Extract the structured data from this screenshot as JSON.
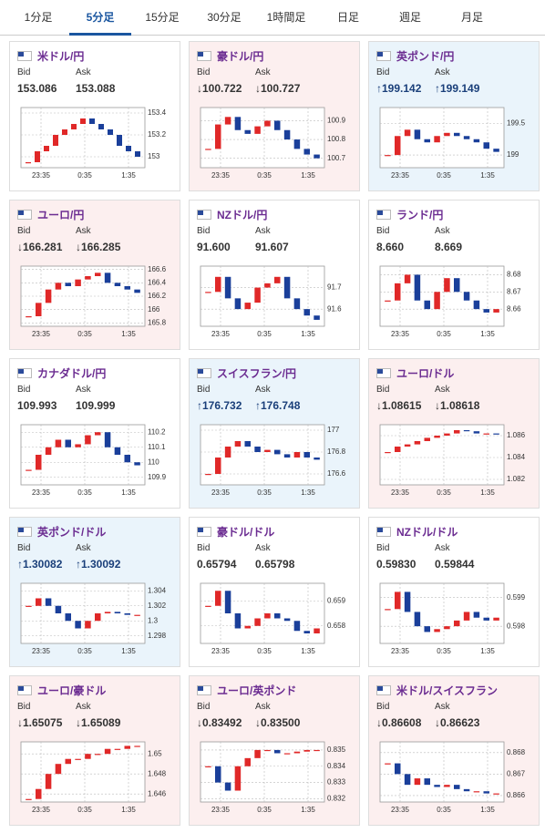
{
  "tabs": [
    "1分足",
    "5分足",
    "15分足",
    "30分足",
    "1時間足",
    "日足",
    "週足",
    "月足"
  ],
  "active_tab": 1,
  "bid_label": "Bid",
  "ask_label": "Ask",
  "time_labels": [
    "23:35",
    "0:35",
    "1:35"
  ],
  "cards": [
    {
      "name": "米ドル/円",
      "bid": "153.086",
      "ask": "153.088",
      "trend": "none",
      "ylim": [
        152.9,
        153.45
      ],
      "yticks": [
        153,
        153.2,
        153.4
      ],
      "closes": [
        152.95,
        153.05,
        153.1,
        153.2,
        153.25,
        153.3,
        153.35,
        153.3,
        153.25,
        153.2,
        153.1,
        153.05,
        153.0
      ]
    },
    {
      "name": "豪ドル/円",
      "bid": "↓100.722",
      "ask": "↓100.727",
      "trend": "down",
      "ylim": [
        100.65,
        100.97
      ],
      "yticks": [
        100.7,
        100.8,
        100.9
      ],
      "closes": [
        100.75,
        100.88,
        100.92,
        100.85,
        100.83,
        100.87,
        100.9,
        100.85,
        100.8,
        100.75,
        100.72,
        100.7
      ]
    },
    {
      "name": "英ポンド/円",
      "bid": "↑199.142",
      "ask": "↑199.149",
      "trend": "up",
      "ylim": [
        198.8,
        199.75
      ],
      "yticks": [
        199,
        199.5
      ],
      "closes": [
        199.0,
        199.3,
        199.4,
        199.25,
        199.2,
        199.3,
        199.35,
        199.3,
        199.25,
        199.2,
        199.1,
        199.05
      ]
    },
    {
      "name": "ユーロ/円",
      "bid": "↓166.281",
      "ask": "↓166.285",
      "trend": "down",
      "ylim": [
        165.75,
        166.65
      ],
      "yticks": [
        165.8,
        166,
        166.2,
        166.4,
        166.6
      ],
      "closes": [
        165.9,
        166.1,
        166.3,
        166.4,
        166.35,
        166.45,
        166.5,
        166.55,
        166.4,
        166.35,
        166.3,
        166.25
      ]
    },
    {
      "name": "NZドル/円",
      "bid": "91.600",
      "ask": "91.607",
      "trend": "none",
      "ylim": [
        91.52,
        91.8
      ],
      "yticks": [
        91.6,
        91.7
      ],
      "closes": [
        91.68,
        91.75,
        91.65,
        91.6,
        91.63,
        91.7,
        91.72,
        91.75,
        91.65,
        91.6,
        91.57,
        91.55
      ]
    },
    {
      "name": "ランド/円",
      "bid": "8.660",
      "ask": "8.669",
      "trend": "none",
      "ylim": [
        8.65,
        8.685
      ],
      "yticks": [
        8.66,
        8.67,
        8.68
      ],
      "closes": [
        8.665,
        8.675,
        8.68,
        8.665,
        8.66,
        8.67,
        8.678,
        8.67,
        8.665,
        8.66,
        8.658,
        8.66
      ]
    },
    {
      "name": "カナダドル/円",
      "bid": "109.993",
      "ask": "109.999",
      "trend": "none",
      "ylim": [
        109.85,
        110.25
      ],
      "yticks": [
        109.9,
        110,
        110.1,
        110.2
      ],
      "closes": [
        109.95,
        110.05,
        110.1,
        110.15,
        110.1,
        110.12,
        110.18,
        110.2,
        110.1,
        110.05,
        110.0,
        109.98
      ]
    },
    {
      "name": "スイスフラン/円",
      "bid": "↑176.732",
      "ask": "↑176.748",
      "trend": "up",
      "ylim": [
        176.5,
        177.05
      ],
      "yticks": [
        176.6,
        176.8,
        177
      ],
      "closes": [
        176.6,
        176.75,
        176.85,
        176.9,
        176.85,
        176.8,
        176.82,
        176.78,
        176.75,
        176.8,
        176.75,
        176.73
      ]
    },
    {
      "name": "ユーロ/ドル",
      "bid": "↓1.08615",
      "ask": "↓1.08618",
      "trend": "down",
      "ylim": [
        1.0815,
        1.087
      ],
      "yticks": [
        1.082,
        1.084,
        1.086
      ],
      "closes": [
        1.0845,
        1.085,
        1.0852,
        1.0855,
        1.0858,
        1.086,
        1.0862,
        1.0865,
        1.0864,
        1.0862,
        1.0862,
        1.0861
      ]
    },
    {
      "name": "英ポンド/ドル",
      "bid": "↑1.30082",
      "ask": "↑1.30092",
      "trend": "up",
      "ylim": [
        1.297,
        1.305
      ],
      "yticks": [
        1.298,
        1.3,
        1.302,
        1.304
      ],
      "closes": [
        1.302,
        1.303,
        1.302,
        1.301,
        1.3,
        1.299,
        1.3,
        1.301,
        1.3012,
        1.301,
        1.3008,
        1.3008
      ]
    },
    {
      "name": "豪ドル/ドル",
      "bid": "0.65794",
      "ask": "0.65798",
      "trend": "none",
      "ylim": [
        0.6573,
        0.6597
      ],
      "yticks": [
        0.658,
        0.659
      ],
      "closes": [
        0.6588,
        0.6594,
        0.6585,
        0.6579,
        0.658,
        0.6583,
        0.6585,
        0.6583,
        0.6582,
        0.6578,
        0.6577,
        0.6579
      ]
    },
    {
      "name": "NZドル/ドル",
      "bid": "0.59830",
      "ask": "0.59844",
      "trend": "none",
      "ylim": [
        0.5974,
        0.5995
      ],
      "yticks": [
        0.598,
        0.599
      ],
      "closes": [
        0.5986,
        0.5992,
        0.5985,
        0.598,
        0.5978,
        0.5979,
        0.598,
        0.5982,
        0.5985,
        0.5983,
        0.5982,
        0.5983
      ]
    },
    {
      "name": "ユーロ/豪ドル",
      "bid": "↓1.65075",
      "ask": "↓1.65089",
      "trend": "down",
      "ylim": [
        1.6452,
        1.6512
      ],
      "yticks": [
        1.646,
        1.648,
        1.65
      ],
      "closes": [
        1.6455,
        1.6465,
        1.648,
        1.649,
        1.6495,
        1.6495,
        1.65,
        1.65,
        1.6505,
        1.6505,
        1.6508,
        1.6508
      ]
    },
    {
      "name": "ユーロ/英ポンド",
      "bid": "↓0.83492",
      "ask": "↓0.83500",
      "trend": "down",
      "ylim": [
        0.8318,
        0.8355
      ],
      "yticks": [
        0.832,
        0.833,
        0.834,
        0.835
      ],
      "closes": [
        0.834,
        0.833,
        0.8325,
        0.834,
        0.8345,
        0.835,
        0.835,
        0.8348,
        0.8348,
        0.8349,
        0.835,
        0.835
      ]
    },
    {
      "name": "米ドル/スイスフラン",
      "bid": "↓0.86608",
      "ask": "↓0.86623",
      "trend": "down",
      "ylim": [
        0.8657,
        0.8685
      ],
      "yticks": [
        0.866,
        0.867,
        0.868
      ],
      "closes": [
        0.8675,
        0.867,
        0.8665,
        0.8668,
        0.8665,
        0.8664,
        0.8665,
        0.8663,
        0.8662,
        0.8662,
        0.8661,
        0.8661
      ]
    }
  ]
}
